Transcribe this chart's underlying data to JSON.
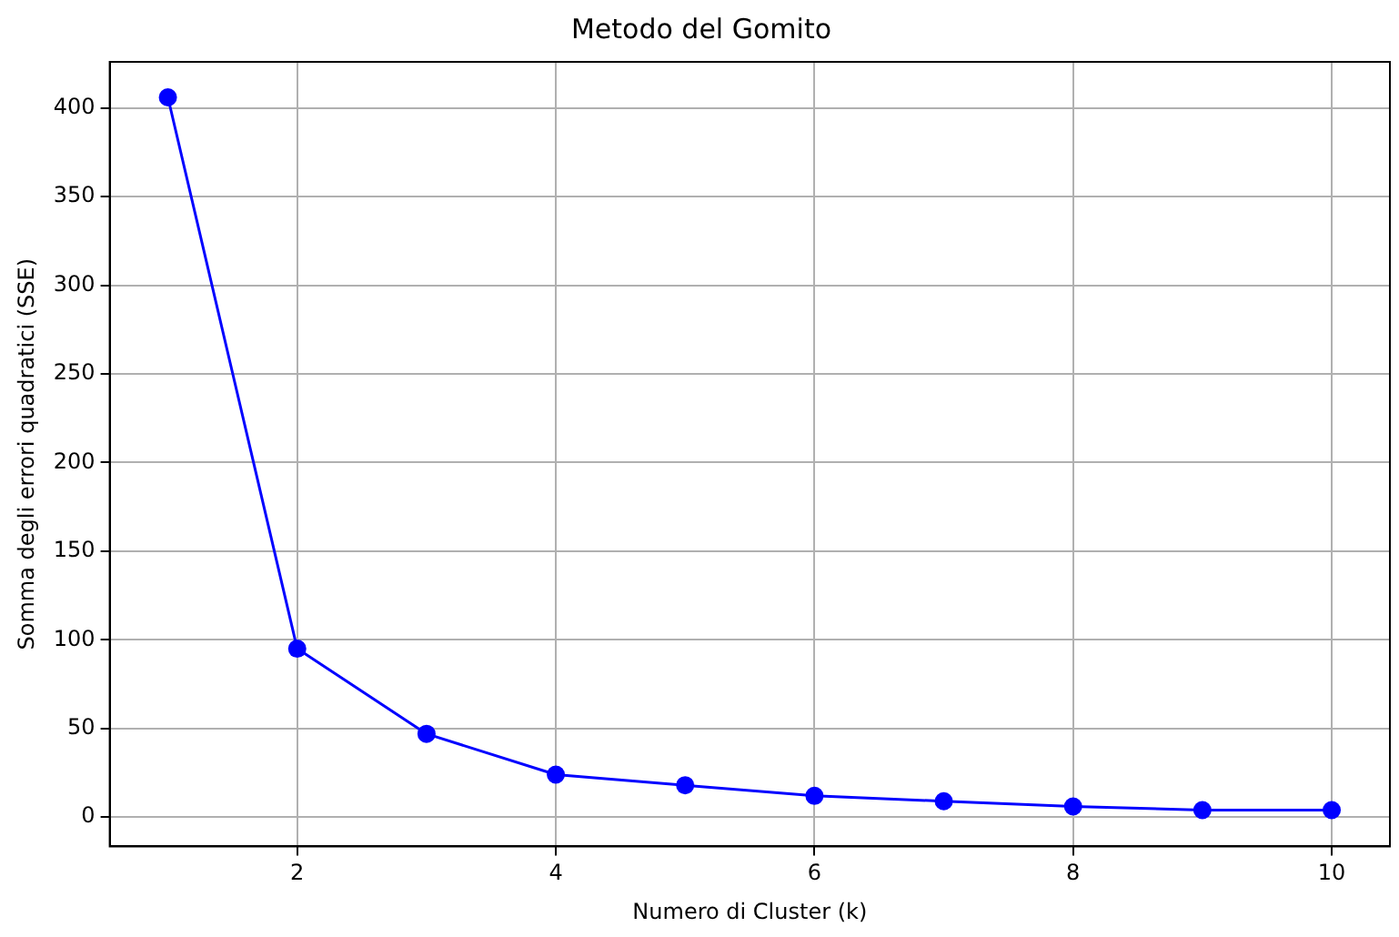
{
  "chart_data": {
    "type": "line",
    "title": "Metodo del Gomito",
    "xlabel": "Numero di Cluster (k)",
    "ylabel": "Somma degli errori quadratici (SSE)",
    "x": [
      1,
      2,
      3,
      4,
      5,
      6,
      7,
      8,
      9,
      10
    ],
    "series": [
      {
        "color": "#0000ff",
        "values": [
          406,
          95,
          47,
          24,
          18,
          12,
          9,
          6,
          4,
          4
        ]
      }
    ],
    "xlim": [
      0.55,
      10.45
    ],
    "xticks": [
      2,
      4,
      6,
      8,
      10
    ],
    "ylim": [
      -16.5,
      426
    ],
    "yticks": [
      0,
      50,
      100,
      150,
      200,
      250,
      300,
      350,
      400
    ],
    "grid": true,
    "marker": "circle",
    "line_style": "solid",
    "legend": false
  }
}
